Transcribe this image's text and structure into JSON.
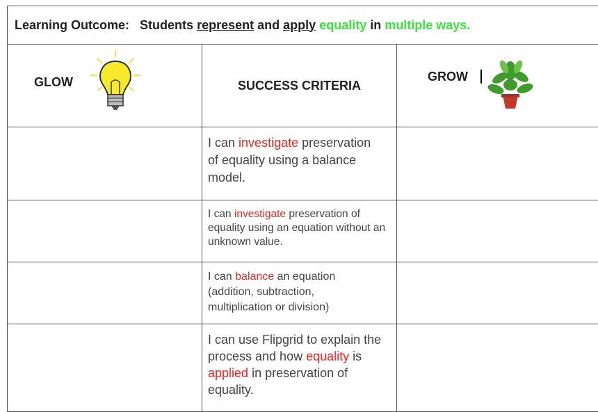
{
  "learning_outcome": {
    "label": "Learning Outcome:",
    "parts": [
      "Students",
      "represent",
      "and",
      "apply",
      "equality",
      "in",
      "multiple ways."
    ]
  },
  "table": {
    "headers": [
      "GLOW",
      "SUCCESS CRITERIA",
      "GROW"
    ],
    "rows": [
      {
        "criteria": [
          "I can",
          "investigate",
          "preservation of equality using a balance model."
        ]
      },
      {
        "criteria": [
          "I can",
          "investigate",
          "preservation of equality using an equation without an unknown value."
        ]
      },
      {
        "criteria": [
          "I can",
          "balance",
          "an equation (addition, subtraction, multiplication or division)"
        ]
      },
      {
        "criteria": [
          "I can use Flipgrid to explain the process and how",
          "equality",
          "is",
          "applied",
          "in preservation of equality."
        ]
      }
    ]
  }
}
